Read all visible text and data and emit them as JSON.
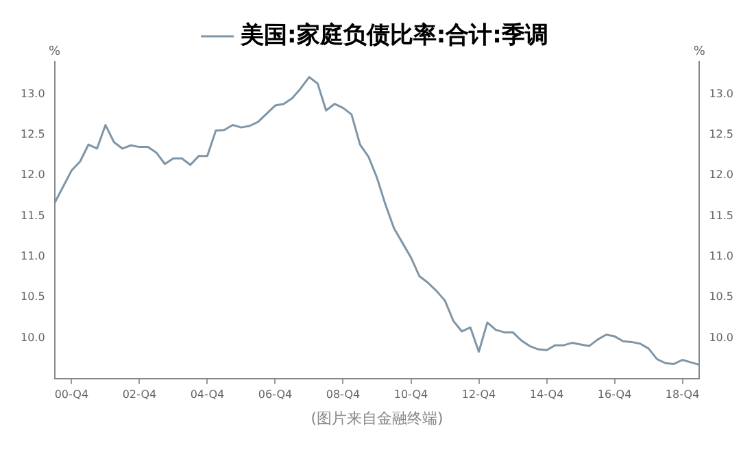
{
  "chart_data": {
    "type": "line",
    "categories": [
      null,
      null,
      "00-Q4",
      null,
      null,
      null,
      null,
      null,
      null,
      null,
      "02-Q4",
      null,
      null,
      null,
      null,
      null,
      null,
      null,
      "04-Q4",
      null,
      null,
      null,
      null,
      null,
      null,
      null,
      "06-Q4",
      null,
      null,
      null,
      null,
      null,
      null,
      null,
      "08-Q4",
      null,
      null,
      null,
      null,
      null,
      null,
      null,
      "10-Q4",
      null,
      null,
      null,
      null,
      null,
      null,
      null,
      "12-Q4",
      null,
      null,
      null,
      null,
      null,
      null,
      null,
      "14-Q4",
      null,
      null,
      null,
      null,
      null,
      null,
      null,
      "16-Q4",
      null,
      null,
      null,
      null,
      null,
      null,
      null,
      "18-Q4",
      null,
      null
    ],
    "series": [
      {
        "name": "美国:家庭负债比率:合计:季调",
        "color": "#7f96a8",
        "values": [
          11.66,
          11.86,
          12.06,
          12.17,
          12.38,
          12.33,
          12.62,
          12.41,
          12.33,
          12.37,
          12.35,
          12.35,
          12.28,
          12.14,
          12.21,
          12.21,
          12.13,
          12.24,
          12.24,
          12.55,
          12.56,
          12.62,
          12.59,
          12.61,
          12.66,
          12.76,
          12.86,
          12.88,
          12.95,
          13.07,
          13.21,
          13.13,
          12.8,
          12.88,
          12.83,
          12.75,
          12.38,
          12.23,
          11.97,
          11.64,
          11.35,
          11.17,
          10.99,
          10.76,
          10.68,
          10.58,
          10.46,
          10.21,
          10.08,
          10.13,
          9.83,
          10.19,
          10.1,
          10.07,
          10.07,
          9.97,
          9.9,
          9.86,
          9.85,
          9.91,
          9.91,
          9.94,
          9.92,
          9.9,
          9.98,
          10.04,
          10.02,
          9.96,
          9.95,
          9.93,
          9.87,
          9.74,
          9.69,
          9.68,
          9.73,
          9.7,
          9.67
        ]
      }
    ],
    "ylabel": "%",
    "y2label": "%",
    "ylim": [
      9.5,
      13.4
    ],
    "yticks": [
      {
        "value": 10,
        "label": "10.0"
      },
      {
        "value": 10.5,
        "label": "10.5"
      },
      {
        "value": 11,
        "label": "11.0"
      },
      {
        "value": 11.5,
        "label": "11.5"
      },
      {
        "value": 12,
        "label": "12.0"
      },
      {
        "value": 12.5,
        "label": "12.5"
      },
      {
        "value": 13,
        "label": "13.0"
      }
    ],
    "y2lim": [
      9.5,
      13.4
    ],
    "y2ticks": [
      {
        "value": 10,
        "label": "10.0"
      },
      {
        "value": 10.5,
        "label": "10.5"
      },
      {
        "value": 11,
        "label": "11.0"
      },
      {
        "value": 11.5,
        "label": "11.5"
      },
      {
        "value": 12,
        "label": "12.0"
      },
      {
        "value": 12.5,
        "label": "12.5"
      },
      {
        "value": 13,
        "label": "13.0"
      }
    ],
    "legend": "top",
    "grid": false,
    "marker": "none",
    "line_style": "solid",
    "annotations": [
      "(图片来自金融终端)"
    ]
  }
}
